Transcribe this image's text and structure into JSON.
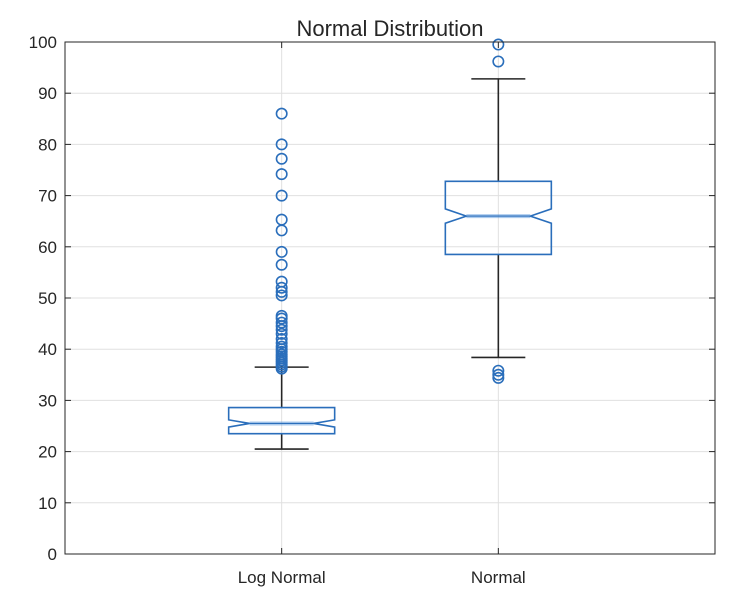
{
  "chart_data": {
    "type": "box",
    "title": "Normal Distribution",
    "xlabel": "",
    "ylabel": "",
    "ylim": [
      0,
      100
    ],
    "yticks": [
      0,
      10,
      20,
      30,
      40,
      50,
      60,
      70,
      80,
      90,
      100
    ],
    "grid": true,
    "notch": true,
    "categories": [
      "Log Normal",
      "Normal"
    ],
    "boxes": [
      {
        "name": "Log Normal",
        "whisker_low": 20.5,
        "q1": 23.5,
        "median": 25.5,
        "q3": 28.6,
        "whisker_high": 36.5,
        "notch_low": 24.8,
        "notch_high": 26.2,
        "outliers": [
          36.2,
          36.6,
          37.0,
          37.4,
          37.8,
          38.2,
          38.6,
          39.0,
          39.5,
          40.0,
          40.5,
          41.2,
          42.0,
          43.0,
          43.8,
          44.5,
          45.2,
          46.0,
          46.5,
          50.5,
          51.2,
          52.0,
          53.2,
          56.5,
          59.0,
          63.2,
          65.3,
          70.0,
          74.2,
          77.2,
          80.0,
          86.0
        ]
      },
      {
        "name": "Normal",
        "whisker_low": 38.4,
        "q1": 58.5,
        "median": 66.0,
        "q3": 72.8,
        "whisker_high": 92.8,
        "notch_low": 64.6,
        "notch_high": 67.4,
        "outliers": [
          34.4,
          35.0,
          35.8,
          96.2,
          99.5
        ]
      }
    ],
    "colors": {
      "box": "#2a6ebb",
      "whisker": "#262626",
      "median": "#4a8ed8",
      "grid": "#e0e0e0"
    }
  }
}
